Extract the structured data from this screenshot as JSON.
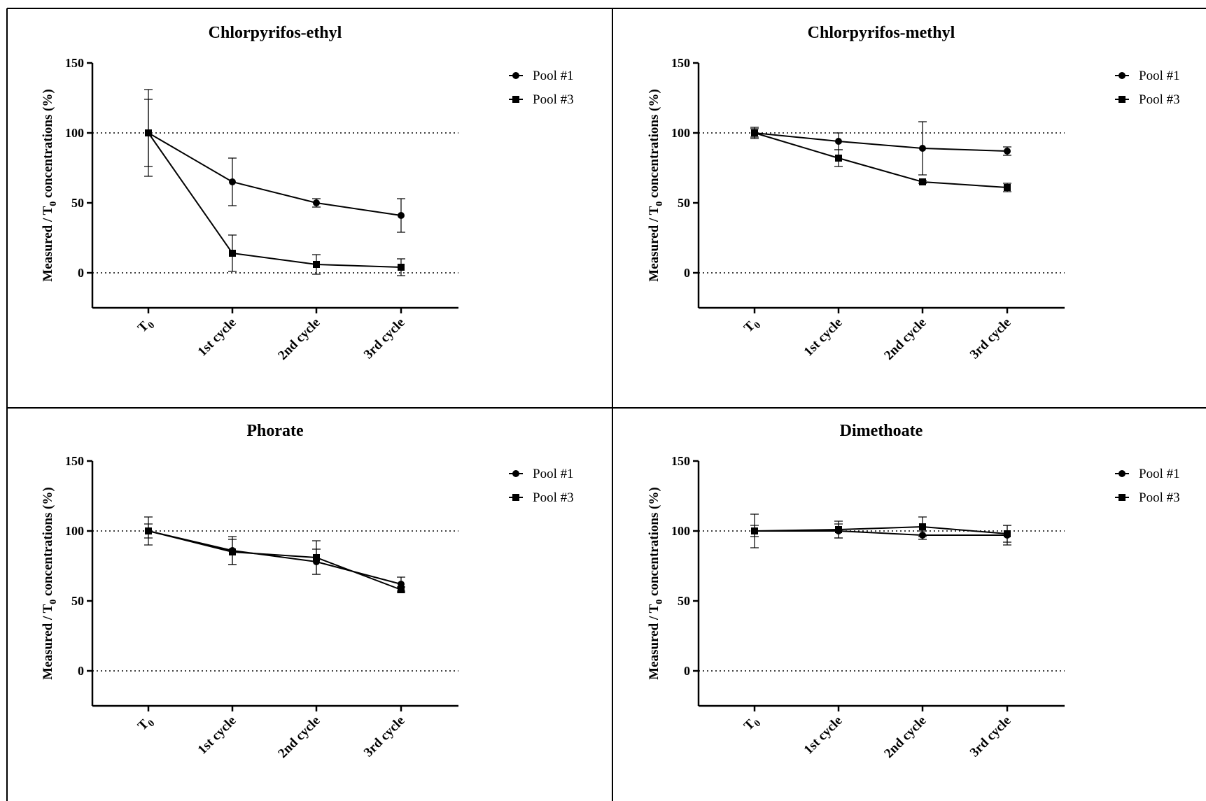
{
  "chart_data": [
    {
      "type": "line",
      "title": "Chlorpyrifos-ethyl",
      "ylabel": "Measured / T0 concentrations (%)",
      "categories": [
        "T0",
        "1st cycle",
        "2nd cycle",
        "3rd cycle"
      ],
      "ylim": [
        -25,
        150
      ],
      "yticks": [
        0,
        50,
        100,
        150
      ],
      "reference_lines": [
        0,
        100
      ],
      "legend_position": "top-right",
      "series": [
        {
          "name": "Pool #1",
          "marker": "circle",
          "values": [
            100,
            65,
            50,
            41
          ],
          "errors": [
            24,
            17,
            3,
            12
          ]
        },
        {
          "name": "Pool #3",
          "marker": "square",
          "values": [
            100,
            14,
            6,
            4
          ],
          "errors": [
            31,
            13,
            7,
            6
          ]
        }
      ]
    },
    {
      "type": "line",
      "title": "Chlorpyrifos-methyl",
      "ylabel": "Measured / T0 concentrations (%)",
      "categories": [
        "T0",
        "1st cycle",
        "2nd cycle",
        "3rd cycle"
      ],
      "ylim": [
        -25,
        150
      ],
      "yticks": [
        0,
        50,
        100,
        150
      ],
      "reference_lines": [
        0,
        100
      ],
      "legend_position": "top-right",
      "series": [
        {
          "name": "Pool #1",
          "marker": "circle",
          "values": [
            100,
            94,
            89,
            87
          ],
          "errors": [
            4,
            6,
            19,
            3
          ]
        },
        {
          "name": "Pool #3",
          "marker": "square",
          "values": [
            100,
            82,
            65,
            61
          ],
          "errors": [
            3,
            6,
            1,
            3
          ]
        }
      ]
    },
    {
      "type": "line",
      "title": "Phorate",
      "ylabel": "Measured / T0 concentrations (%)",
      "categories": [
        "T0",
        "1st cycle",
        "2nd cycle",
        "3rd cycle"
      ],
      "ylim": [
        -25,
        150
      ],
      "yticks": [
        0,
        50,
        100,
        150
      ],
      "reference_lines": [
        0,
        100
      ],
      "legend_position": "top-right",
      "series": [
        {
          "name": "Pool #1",
          "marker": "circle",
          "values": [
            100,
            86,
            78,
            62
          ],
          "errors": [
            5,
            10,
            9,
            5
          ]
        },
        {
          "name": "Pool #3",
          "marker": "square",
          "values": [
            100,
            85,
            81,
            58
          ],
          "errors": [
            10,
            9,
            12,
            2
          ]
        }
      ]
    },
    {
      "type": "line",
      "title": "Dimethoate",
      "ylabel": "Measured / T0 concentrations (%)",
      "categories": [
        "T0",
        "1st cycle",
        "2nd cycle",
        "3rd cycle"
      ],
      "ylim": [
        -25,
        150
      ],
      "yticks": [
        0,
        50,
        100,
        150
      ],
      "reference_lines": [
        0,
        100
      ],
      "legend_position": "top-right",
      "series": [
        {
          "name": "Pool #1",
          "marker": "circle",
          "values": [
            100,
            100,
            97,
            97
          ],
          "errors": [
            4,
            5,
            3,
            7
          ]
        },
        {
          "name": "Pool #3",
          "marker": "square",
          "values": [
            100,
            101,
            103,
            98
          ],
          "errors": [
            12,
            6,
            7,
            6
          ]
        }
      ]
    }
  ]
}
